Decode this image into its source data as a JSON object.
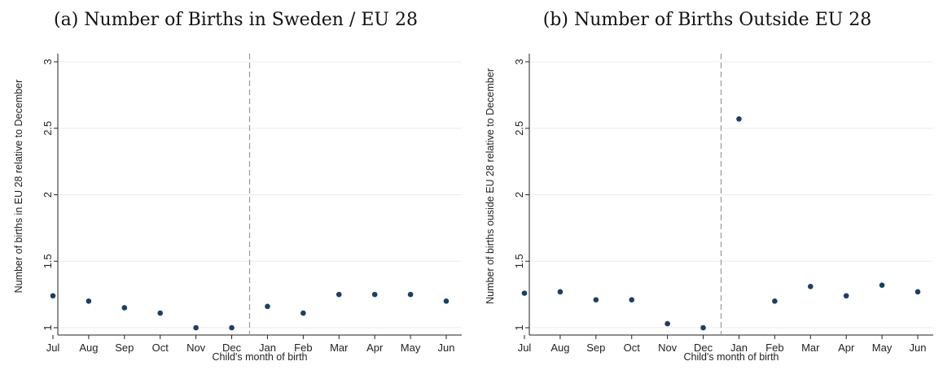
{
  "chart_data": [
    {
      "type": "scatter",
      "title": "(a) Number of Births in Sweden / EU 28",
      "xlabel": "Child's month of birth",
      "ylabel": "Number of births in EU 28 relative to December",
      "categories": [
        "Jul",
        "Aug",
        "Sep",
        "Oct",
        "Nov",
        "Dec",
        "Jan",
        "Feb",
        "Mar",
        "Apr",
        "May",
        "Jun"
      ],
      "values": [
        1.24,
        1.2,
        1.15,
        1.11,
        1.0,
        1.0,
        1.16,
        1.11,
        1.25,
        1.25,
        1.25,
        1.2
      ],
      "ylim": [
        1,
        3
      ],
      "yticks": [
        "1",
        "1.5",
        "2",
        "2.5",
        "3"
      ],
      "yticks_values": [
        1,
        1.5,
        2,
        2.5,
        3
      ],
      "vline_between": [
        "Dec",
        "Jan"
      ],
      "marker_color": "#1f3f5f",
      "grid_color": "#ebebeb",
      "vline_color": "#999999"
    },
    {
      "type": "scatter",
      "title": "(b) Number of Births Outside EU 28",
      "xlabel": "Child's month of birth",
      "ylabel": "Number of births ouside EU 28 relative to December",
      "categories": [
        "Jul",
        "Aug",
        "Sep",
        "Oct",
        "Nov",
        "Dec",
        "Jan",
        "Feb",
        "Mar",
        "Apr",
        "May",
        "Jun"
      ],
      "values": [
        1.26,
        1.27,
        1.21,
        1.21,
        1.03,
        1.0,
        2.57,
        1.2,
        1.31,
        1.24,
        1.32,
        1.27
      ],
      "ylim": [
        1,
        3
      ],
      "yticks": [
        "1",
        "1.5",
        "2",
        "2.5",
        "3"
      ],
      "yticks_values": [
        1,
        1.5,
        2,
        2.5,
        3
      ],
      "vline_between": [
        "Dec",
        "Jan"
      ],
      "marker_color": "#1f3f5f",
      "grid_color": "#ebebeb",
      "vline_color": "#999999"
    }
  ]
}
